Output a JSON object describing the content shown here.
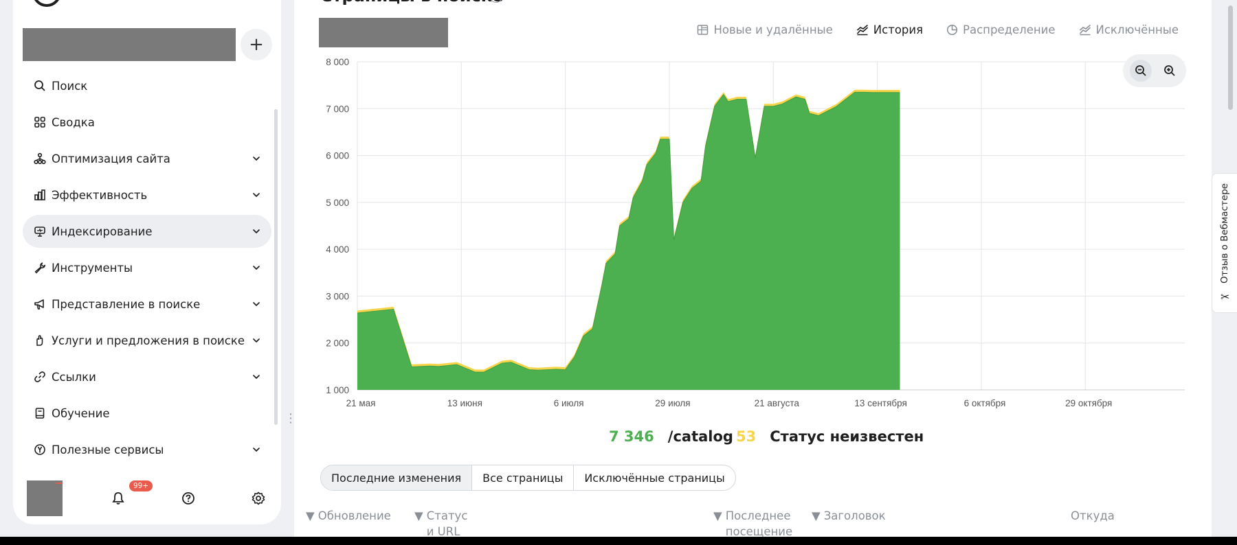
{
  "sidebar": {
    "add_label": "+",
    "items": [
      {
        "label": "Поиск",
        "icon": "search-icon",
        "chevron": false,
        "active": false
      },
      {
        "label": "Сводка",
        "icon": "grid-icon",
        "chevron": false,
        "active": false
      },
      {
        "label": "Оптимизация сайта",
        "icon": "sitemap-icon",
        "chevron": true,
        "active": false
      },
      {
        "label": "Эффективность",
        "icon": "bar-chart-icon",
        "chevron": true,
        "active": false
      },
      {
        "label": "Индексирование",
        "icon": "monitor-icon",
        "chevron": true,
        "active": true
      },
      {
        "label": "Инструменты",
        "icon": "wrench-icon",
        "chevron": true,
        "active": false
      },
      {
        "label": "Представление в поиске",
        "icon": "megaphone-icon",
        "chevron": true,
        "active": false
      },
      {
        "label": "Услуги и предложения в поиске",
        "icon": "hand-icon",
        "chevron": true,
        "active": false
      },
      {
        "label": "Ссылки",
        "icon": "link-icon",
        "chevron": true,
        "active": false
      },
      {
        "label": "Обучение",
        "icon": "book-icon",
        "chevron": false,
        "active": false
      },
      {
        "label": "Полезные сервисы",
        "icon": "yandex-icon",
        "chevron": true,
        "active": false
      }
    ],
    "footer": {
      "notifications_badge": "99+"
    }
  },
  "main": {
    "title": "Страницы в поиске",
    "view_tabs": [
      {
        "label": "Новые и удалённые",
        "icon": "table-icon",
        "active": false
      },
      {
        "label": "История",
        "icon": "area-chart-icon",
        "active": true
      },
      {
        "label": "Распределение",
        "icon": "pie-chart-icon",
        "active": false
      },
      {
        "label": "Исключённые",
        "icon": "area-chart-icon",
        "active": false
      }
    ],
    "stats": [
      {
        "value": "7 346",
        "label": "/catalog",
        "color": "#4caf50"
      },
      {
        "value": "53",
        "label": "Статус неизвестен",
        "color": "#f7d44a"
      }
    ],
    "segments": [
      {
        "label": "Последние изменения",
        "active": true
      },
      {
        "label": "Все страницы",
        "active": false
      },
      {
        "label": "Исключённые страницы",
        "active": false
      }
    ],
    "table_headers": [
      {
        "label": "Обновление",
        "filter": true
      },
      {
        "label": "Статус и URL",
        "filter": true
      },
      {
        "label": "Последнее посещение",
        "filter": true
      },
      {
        "label": "Заголовок",
        "filter": true
      },
      {
        "label": "Откуда",
        "filter": false
      }
    ]
  },
  "feedback": {
    "label": "Отзыв о Вебмастере"
  },
  "chart_data": {
    "type": "area",
    "title": "",
    "xlabel": "",
    "ylabel": "",
    "ylim": [
      1000,
      8000
    ],
    "yticks": [
      "1 000",
      "2 000",
      "3 000",
      "4 000",
      "5 000",
      "6 000",
      "7 000",
      "8 000"
    ],
    "yticks_values": [
      1000,
      2000,
      3000,
      4000,
      5000,
      6000,
      7000,
      8000
    ],
    "xticks": [
      "21 мая",
      "13 июня",
      "6 июля",
      "29 июля",
      "21 августа",
      "13 сентября",
      "6 октября",
      "29 октября"
    ],
    "xlim": [
      0,
      183
    ],
    "xticks_days": [
      0,
      23,
      46,
      69,
      92,
      115,
      138,
      161
    ],
    "grid": true,
    "series": [
      {
        "name": "/catalog",
        "color": "#4caf50",
        "x": [
          0,
          8,
          12,
          16,
          18,
          22,
          26,
          28,
          32,
          34,
          38,
          40,
          44,
          46,
          48,
          50,
          52,
          54,
          55,
          57,
          58,
          60,
          61,
          63,
          64,
          66,
          67,
          69,
          70,
          71,
          72,
          74,
          76,
          77,
          79,
          81,
          82,
          84,
          86,
          88,
          90,
          91,
          92,
          94,
          96,
          97,
          99,
          100,
          102,
          106,
          110,
          112,
          114,
          116,
          120
        ],
        "y": [
          2640,
          2720,
          1490,
          1510,
          1500,
          1540,
          1380,
          1380,
          1570,
          1590,
          1430,
          1420,
          1440,
          1430,
          1700,
          2150,
          2300,
          3200,
          3700,
          3900,
          4500,
          4650,
          5100,
          5450,
          5800,
          6050,
          6350,
          6350,
          4200,
          4600,
          5000,
          5300,
          5450,
          6200,
          7050,
          7300,
          7150,
          7200,
          7200,
          5950,
          7050,
          7050,
          7050,
          7100,
          7200,
          7250,
          7200,
          6900,
          6850,
          7050,
          7350,
          7350,
          7346,
          7346,
          7346
        ]
      },
      {
        "name": "Статус неизвестен",
        "color": "#f7d44a",
        "values_constant": 53
      }
    ]
  }
}
